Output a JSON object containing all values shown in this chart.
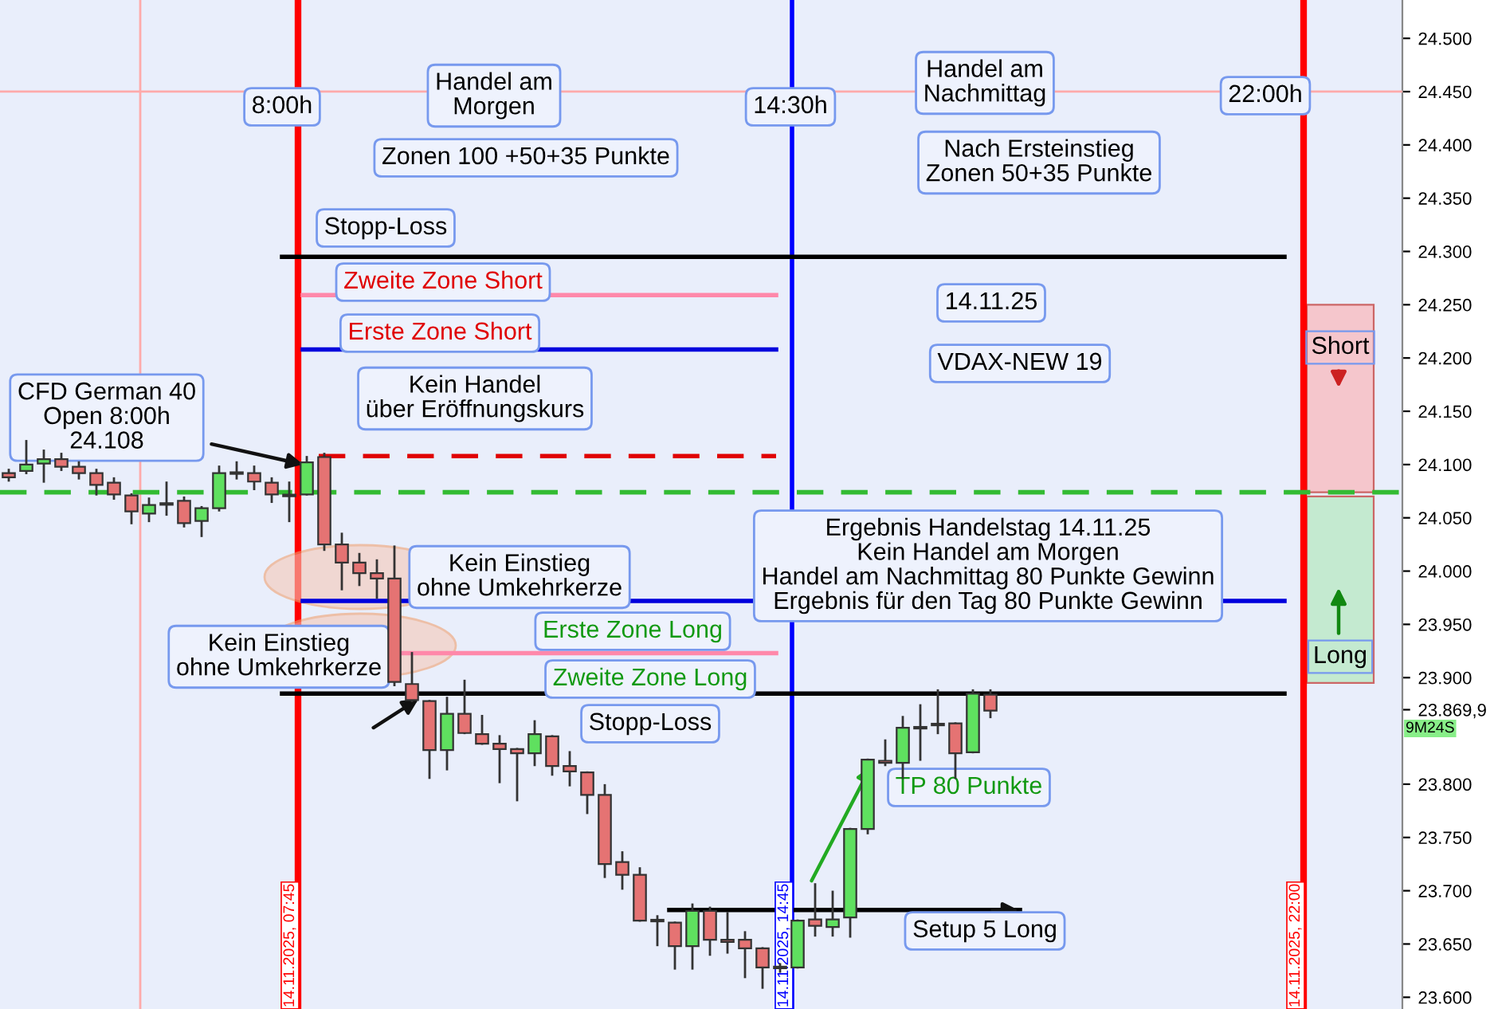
{
  "chart_data": {
    "type": "candlestick",
    "categories": [
      null,
      null,
      null,
      null,
      null,
      null,
      null,
      null,
      null,
      null,
      null,
      null,
      null,
      null,
      null,
      null,
      null,
      null,
      null,
      null,
      null,
      null,
      null,
      null,
      null,
      null,
      null,
      null,
      null,
      null,
      null,
      null,
      null,
      null,
      null,
      null,
      null,
      null,
      null,
      null,
      null,
      null,
      null,
      null,
      null,
      null,
      null,
      null,
      null,
      null,
      null,
      null,
      null,
      null,
      null,
      null,
      null,
      null,
      null,
      null,
      null,
      null,
      null,
      null,
      null,
      null,
      null,
      null,
      null,
      null,
      null,
      null,
      null,
      null,
      null,
      null,
      null,
      null,
      null,
      null
    ],
    "ohlc": [
      [
        24092,
        24095,
        24085,
        24088
      ],
      [
        24094,
        24122,
        24092,
        24100
      ],
      [
        24101,
        24113,
        24084,
        24105
      ],
      [
        24105,
        24110,
        24095,
        24098
      ],
      [
        24098,
        24102,
        24087,
        24092
      ],
      [
        24092,
        24095,
        24072,
        24081
      ],
      [
        24083,
        24087,
        24068,
        24072
      ],
      [
        24071,
        24072,
        24045,
        24056
      ],
      [
        24054,
        24068,
        24047,
        24062
      ],
      [
        24063,
        24083,
        24053,
        24063
      ],
      [
        24066,
        24069,
        24042,
        24045
      ],
      [
        24047,
        24060,
        24033,
        24059
      ],
      [
        24059,
        24098,
        24057,
        24092
      ],
      [
        24092,
        24102,
        24087,
        24092
      ],
      [
        24092,
        24098,
        24077,
        24084
      ],
      [
        24083,
        24087,
        24065,
        24072
      ],
      [
        24071,
        24083,
        24047,
        24071
      ],
      [
        24072,
        24107,
        24072,
        24102
      ],
      [
        24107,
        24110,
        24020,
        24025
      ],
      [
        24025,
        24035,
        23983,
        24008
      ],
      [
        24008,
        24016,
        23987,
        23998
      ],
      [
        23998,
        24010,
        23975,
        23993
      ],
      [
        23993,
        24023,
        23893,
        23896
      ],
      [
        23894,
        23923,
        23878,
        23879
      ],
      [
        23878,
        23878,
        23806,
        23832
      ],
      [
        23832,
        23881,
        23814,
        23866
      ],
      [
        23866,
        23897,
        23848,
        23848
      ],
      [
        23847,
        23864,
        23838,
        23838
      ],
      [
        23838,
        23845,
        23802,
        23833
      ],
      [
        23833,
        23833,
        23785,
        23829
      ],
      [
        23829,
        23859,
        23818,
        23847
      ],
      [
        23845,
        23845,
        23809,
        23817
      ],
      [
        23817,
        23830,
        23799,
        23812
      ],
      [
        23811,
        23811,
        23773,
        23790
      ],
      [
        23790,
        23799,
        23713,
        23725
      ],
      [
        23727,
        23736,
        23702,
        23715
      ],
      [
        23715,
        23721,
        23672,
        23672
      ],
      [
        23672,
        23676,
        23649,
        23672
      ],
      [
        23670,
        23670,
        23627,
        23648
      ],
      [
        23648,
        23687,
        23627,
        23681
      ],
      [
        23681,
        23684,
        23640,
        23654
      ],
      [
        23654,
        23679,
        23642,
        23652
      ],
      [
        23654,
        23661,
        23619,
        23646
      ],
      [
        23646,
        23646,
        23609,
        23628
      ],
      [
        23628,
        23631,
        23624,
        23628
      ],
      [
        23628,
        23672,
        23628,
        23672
      ],
      [
        23673,
        23706,
        23658,
        23667
      ],
      [
        23666,
        23699,
        23658,
        23673
      ],
      [
        23675,
        23758,
        23657,
        23758
      ],
      [
        23758,
        23823,
        23754,
        23823
      ],
      [
        23822,
        23841,
        23818,
        23820
      ],
      [
        23820,
        23863,
        23806,
        23853
      ],
      [
        23853,
        23874,
        23823,
        23853
      ],
      [
        23856,
        23888,
        23848,
        23856
      ],
      [
        23857,
        23857,
        23806,
        23829
      ],
      [
        23830,
        23888,
        23830,
        23885
      ],
      [
        23884,
        23888,
        23863,
        23869
      ],
      null,
      null,
      null,
      null,
      null,
      null,
      null,
      null,
      null,
      null,
      null,
      null,
      null,
      null,
      null,
      null,
      null,
      null,
      null,
      null,
      null,
      null,
      null
    ],
    "ref_lines": [
      {
        "axis": "y",
        "value": 24295,
        "color": "#000000",
        "line_style": "solid"
      },
      {
        "axis": "y",
        "value": 24259,
        "color": "#ff88aa",
        "line_style": "solid"
      },
      {
        "axis": "y",
        "value": 24208,
        "color": "#0000dd",
        "line_style": "solid"
      },
      {
        "axis": "y",
        "value": 24108,
        "color": "#e00000",
        "line_style": "dashed"
      },
      {
        "axis": "y",
        "value": 24074,
        "color": "#33bb33",
        "line_style": "dashed"
      },
      {
        "axis": "y",
        "value": 23972,
        "color": "#0000dd",
        "line_style": "solid"
      },
      {
        "axis": "y",
        "value": 23923,
        "color": "#ff88aa",
        "line_style": "solid"
      },
      {
        "axis": "y",
        "value": 23885,
        "color": "#000000",
        "line_style": "solid"
      },
      {
        "axis": "y",
        "value": 23682,
        "color": "#000000",
        "line_style": "solid"
      },
      {
        "axis": "y",
        "value": 24450,
        "color": "#ffaaaa",
        "line_style": "solid"
      }
    ],
    "bands": [
      {
        "axis": "y",
        "from": 24074,
        "to": 24250,
        "label": "Short",
        "color": "#f5c6cc"
      },
      {
        "axis": "y",
        "from": 23895,
        "to": 24070,
        "label": "Long",
        "color": "#c4ead0"
      }
    ],
    "annotations": [
      "8:00h",
      "Handel am\nMorgen",
      "Zonen 100 +50+35 Punkte",
      "14:30h",
      "Handel am\nNachmittag",
      "Nach Ersteinstieg\nZonen 50+35 Punkte",
      "22:00h",
      "Stopp-Loss",
      "Zweite Zone Short",
      "Erste Zone Short",
      "Kein Handel\nüber Eröffnungskurs",
      "14.11.25",
      "VDAX-NEW 19",
      "CFD German 40\nOpen 8:00h\n24.108",
      "Kein Einstieg\nohne Umkehrkerze",
      "Ergebnis Handelstag 14.11.25\nKein Handel am Morgen\nHandel am Nachmittag 80 Punkte Gewinn\nErgebnis für den Tag 80 Punkte Gewinn",
      "Erste Zone Long",
      "Kein Einstieg\nohne Umkehrkerze",
      "Zweite Zone Long",
      "Stopp-Loss",
      "TP 80 Punkte",
      "Setup 5 Long",
      "9M24S",
      "14.11.2025, 07:45",
      "14.11.2025, 14:45",
      "14.11.2025, 22:00"
    ],
    "ylim": [
      23589,
      24536
    ],
    "yticks": [
      {
        "value": 23600,
        "label": "23.600"
      },
      {
        "value": 23650,
        "label": "23.650"
      },
      {
        "value": 23700,
        "label": "23.700"
      },
      {
        "value": 23750,
        "label": "23.750"
      },
      {
        "value": 23800,
        "label": "23.800"
      },
      {
        "value": 23869.9,
        "label": "23.869,9"
      },
      {
        "value": 23900,
        "label": "23.900"
      },
      {
        "value": 23950,
        "label": "23.950"
      },
      {
        "value": 24000,
        "label": "24.000"
      },
      {
        "value": 24050,
        "label": "24.050"
      },
      {
        "value": 24100,
        "label": "24.100"
      },
      {
        "value": 24150,
        "label": "24.150"
      },
      {
        "value": 24200,
        "label": "24.200"
      },
      {
        "value": 24250,
        "label": "24.250"
      },
      {
        "value": 24300,
        "label": "24.300"
      },
      {
        "value": 24350,
        "label": "24.350"
      },
      {
        "value": 24400,
        "label": "24.400"
      },
      {
        "value": 24450,
        "label": "24.450"
      },
      {
        "value": 24500,
        "label": "24.500"
      }
    ],
    "tick_labels": "y",
    "grid": false
  }
}
